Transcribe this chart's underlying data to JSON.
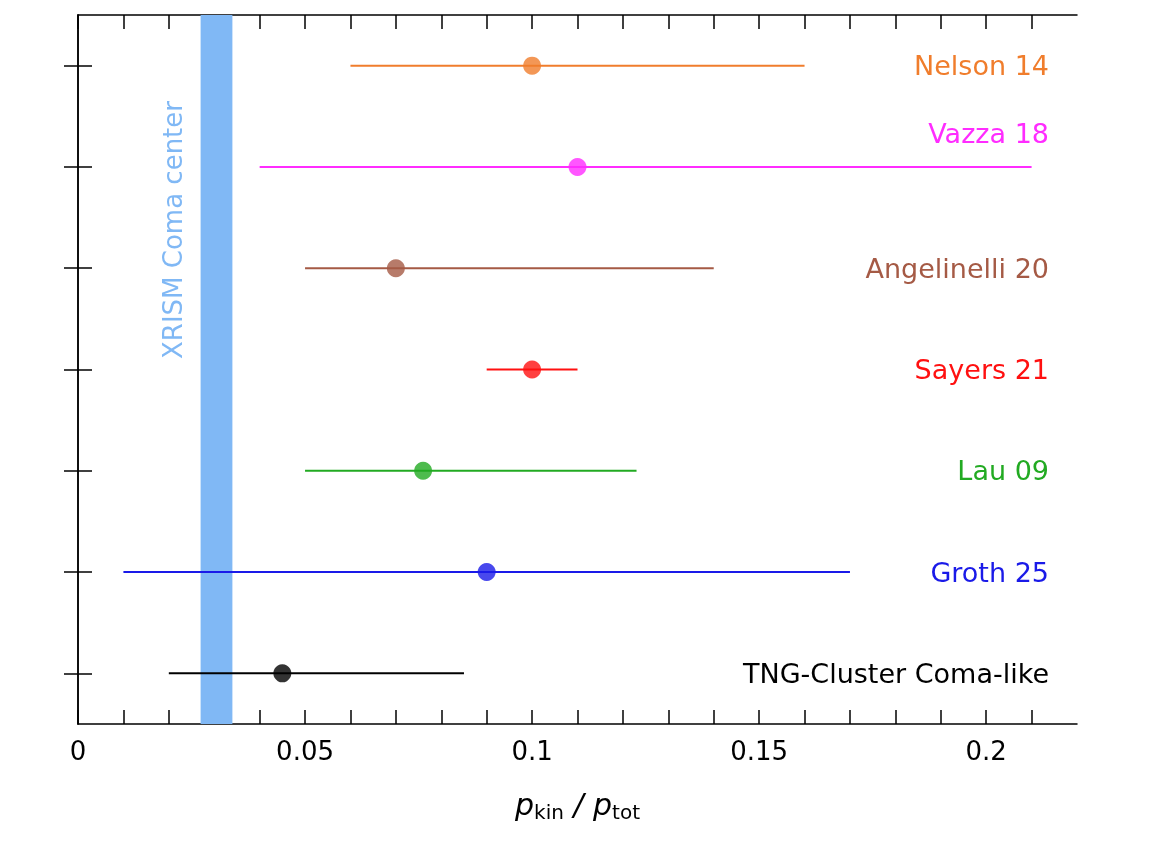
{
  "chart_data": {
    "type": "scatter",
    "orientation": "horizontal",
    "xlabel": "p$_{kin}$ / p$_{tot}$",
    "categories": [
      "Nelson 14",
      "Vazza 18",
      "Angelinelli 20",
      "Sayers 21",
      "Lau 09",
      "Groth 25",
      "TNG-Cluster Coma-like"
    ],
    "values": [
      0.1,
      0.11,
      0.07,
      0.1,
      0.076,
      0.09,
      0.045
    ],
    "errors": [
      [
        0.06,
        0.16
      ],
      [
        0.04,
        0.21
      ],
      [
        0.05,
        0.14
      ],
      [
        0.09,
        0.11
      ],
      [
        0.05,
        0.123
      ],
      [
        0.01,
        0.17
      ],
      [
        0.02,
        0.085
      ]
    ],
    "colors": [
      "#f07d2c",
      "#ff2cff",
      "#a55a45",
      "#ff1010",
      "#22aa22",
      "#1a1ae8",
      "#000000"
    ],
    "xlim": [
      0,
      0.22
    ],
    "xticks": [
      0,
      0.05,
      0.1,
      0.15,
      0.2
    ],
    "grid": false,
    "marker": "circle",
    "bands": [
      {
        "axis": "x",
        "from": 0.027,
        "to": 0.034,
        "label": "XRISM Coma center",
        "color": "#80b8f5"
      }
    ]
  }
}
